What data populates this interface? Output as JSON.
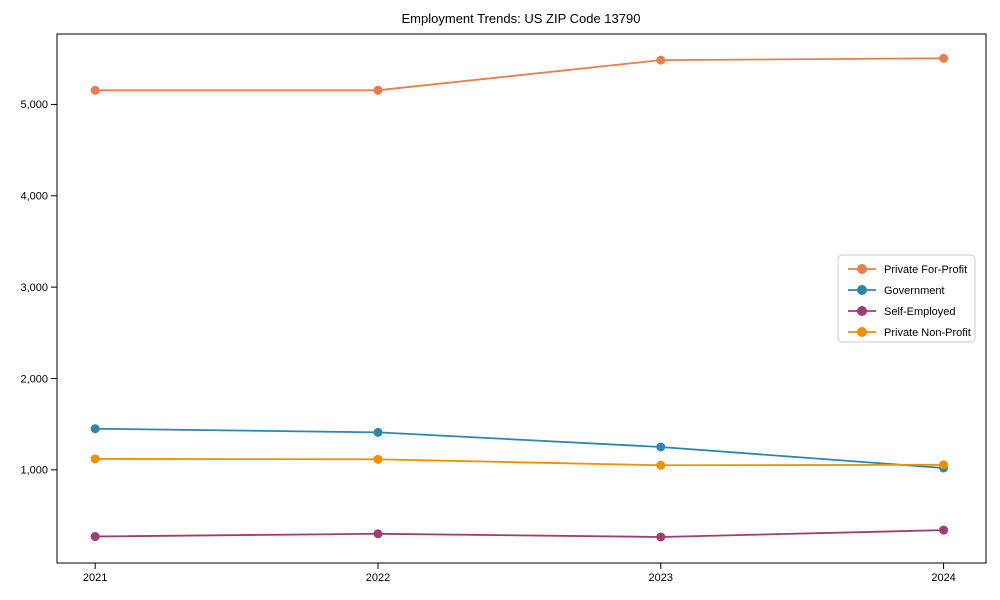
{
  "chart_data": {
    "type": "line",
    "title": "Employment Trends: US ZIP Code 13790",
    "xlabel": "",
    "ylabel": "",
    "categories": [
      "2021",
      "2022",
      "2023",
      "2024"
    ],
    "series": [
      {
        "name": "Private For-Profit",
        "color": "#E87D4E",
        "values": [
          5155,
          5155,
          5485,
          5505
        ]
      },
      {
        "name": "Government",
        "color": "#2E86AB",
        "values": [
          1450,
          1410,
          1250,
          1020
        ]
      },
      {
        "name": "Self-Employed",
        "color": "#A23B72",
        "values": [
          270,
          300,
          265,
          340
        ]
      },
      {
        "name": "Private Non-Profit",
        "color": "#F18F01",
        "values": [
          1120,
          1115,
          1050,
          1055
        ]
      }
    ],
    "yticks": [
      1000,
      2000,
      3000,
      4000,
      5000
    ],
    "ytick_labels": [
      "1,000",
      "2,000",
      "3,000",
      "4,000",
      "5,000"
    ],
    "ylim": [
      -20,
      5771
    ],
    "xlim": [
      -0.135,
      3.15
    ],
    "grid": false,
    "legend_position": "center right",
    "axis_color": "#000000",
    "plot_background": "#ffffff"
  }
}
